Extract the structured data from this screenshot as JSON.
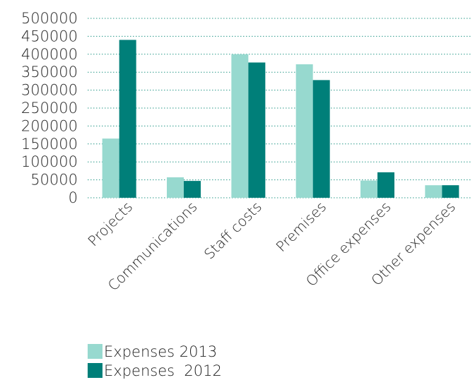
{
  "chart_data": {
    "type": "bar",
    "categories": [
      "Projects",
      "Communications",
      "Staff costs",
      "Premises",
      "Office expenses",
      "Other expenses"
    ],
    "series": [
      {
        "name": "Expenses 2013",
        "values": [
          165000,
          57000,
          400000,
          372000,
          48000,
          35000
        ],
        "color": "#97d9cf"
      },
      {
        "name": "Expenses  2012",
        "values": [
          440000,
          47000,
          377000,
          328000,
          71000,
          35000
        ],
        "color": "#007f79"
      }
    ],
    "yticks": [
      0,
      50000,
      100000,
      150000,
      200000,
      250000,
      300000,
      350000,
      400000,
      450000,
      500000
    ],
    "ylim": [
      0,
      500000
    ],
    "grid": true,
    "grid_style": "dotted",
    "grid_color": "#2a9a8a",
    "legend_position": "bottom-left",
    "title": "",
    "xlabel": "",
    "ylabel": ""
  }
}
